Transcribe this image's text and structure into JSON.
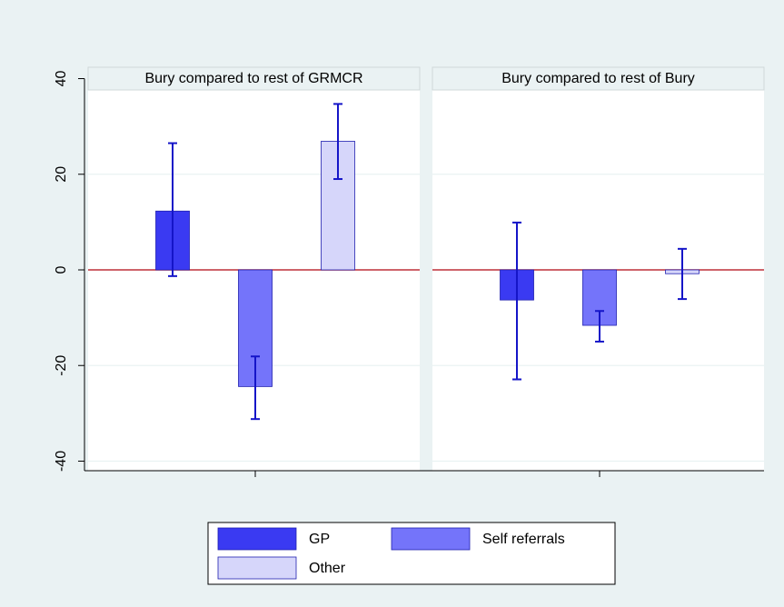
{
  "chart_data": {
    "type": "bar",
    "panels": [
      "Bury compared to rest of GRMCR",
      "Bury compared to rest of Bury"
    ],
    "series": [
      {
        "name": "GP",
        "color": "#3a3af2",
        "values": [
          12.3,
          -6.3
        ],
        "ci_low": [
          -1.3,
          -22.9
        ],
        "ci_high": [
          26.5,
          9.9
        ]
      },
      {
        "name": "Self referrals",
        "color": "#7474fa",
        "values": [
          -24.4,
          -11.6
        ],
        "ci_low": [
          -31.2,
          -15.0
        ],
        "ci_high": [
          -18.1,
          -8.6
        ]
      },
      {
        "name": "Other",
        "color": "#d6d6fa",
        "values": [
          26.9,
          -0.8
        ],
        "ci_low": [
          19.0,
          -6.1
        ],
        "ci_high": [
          34.7,
          4.4
        ]
      }
    ],
    "ylim": [
      -42,
      42
    ],
    "yticks": [
      40,
      20,
      0,
      -20,
      -40
    ],
    "grid": true,
    "zero_line_color": "#c0303a",
    "error_color": "#1515c8",
    "legend": "bottom"
  }
}
